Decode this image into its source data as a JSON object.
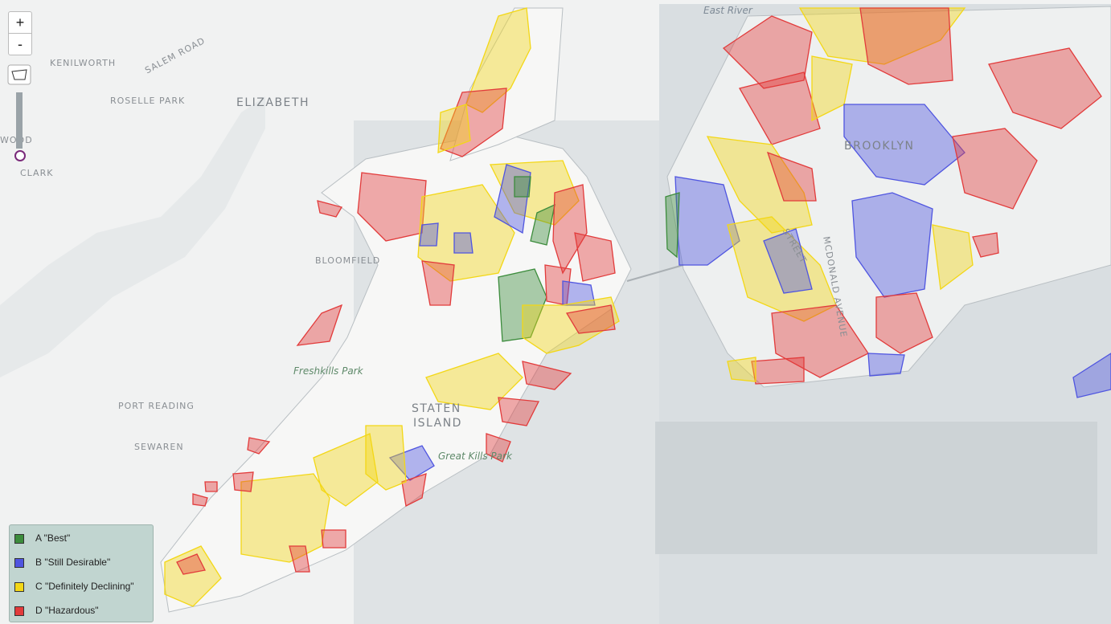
{
  "zoom_controls": {
    "zoom_in": "+",
    "zoom_out": "-"
  },
  "map_labels": [
    "KENILWORTH",
    "SALEM ROAD",
    "ROSELLE PARK",
    "ELIZABETH",
    "WOOD",
    "CLARK",
    "BLOOMFIELD",
    "Freshkills Park",
    "PORT READING",
    "SEWAREN",
    "STATEN",
    "ISLAND",
    "Great Kills Park",
    "East River",
    "BROOKLYN",
    "MCDONALD AVENUE",
    "STREET"
  ],
  "legend": {
    "items": [
      {
        "label": "A \"Best\"",
        "color": "#3c8c3c"
      },
      {
        "label": "B \"Still Desirable\"",
        "color": "#4f55e0"
      },
      {
        "label": "C \"Definitely Declining\"",
        "color": "#f3d716"
      },
      {
        "label": "D \"Hazardous\"",
        "color": "#e23b3b"
      }
    ]
  }
}
